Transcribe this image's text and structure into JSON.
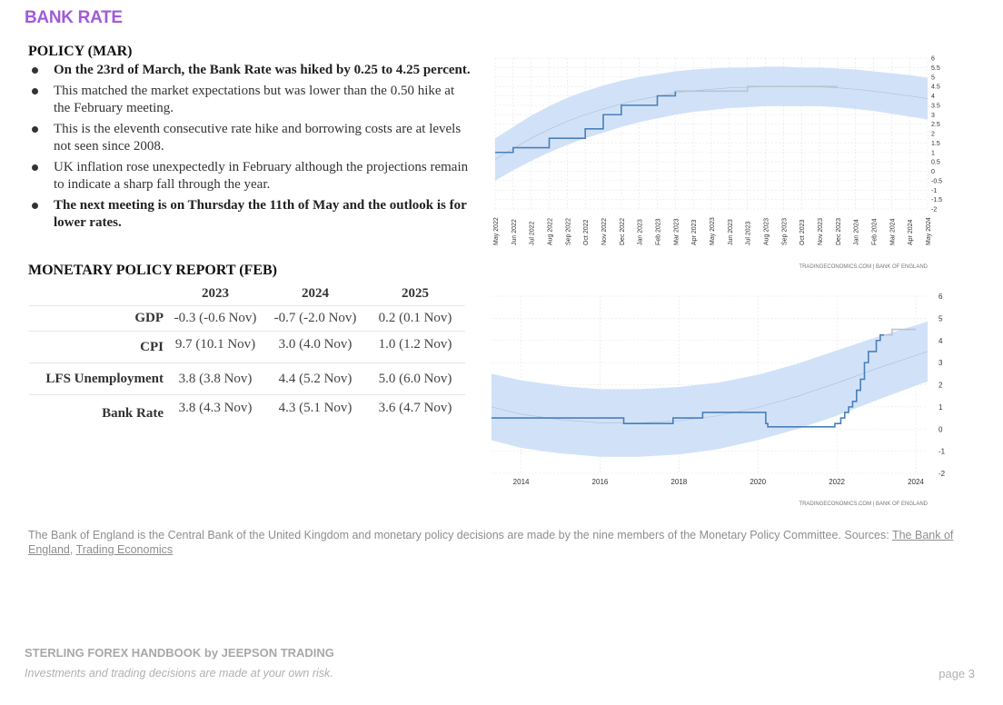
{
  "title": "BANK RATE",
  "policy": {
    "heading": "POLICY (MAR)",
    "bullets": [
      {
        "text": "On the 23rd of March, the Bank Rate was hiked by 0.25 to 4.25 percent.",
        "bold": true
      },
      {
        "text": "This matched the market expectations but was lower than the 0.50 hike at the February meeting.",
        "bold": false
      },
      {
        "text": "This is the eleventh consecutive rate hike and borrowing costs are at levels not seen since 2008.",
        "bold": false
      },
      {
        "text": "UK inflation rose unexpectedly in February although the projections remain to indicate a sharp fall through the year.",
        "bold": false
      },
      {
        "text": "The next meeting is on Thursday the 11th of May and the outlook is for lower rates.",
        "bold": true
      }
    ]
  },
  "mpr": {
    "heading": "MONETARY POLICY REPORT (FEB)",
    "columns": [
      "2023",
      "2024",
      "2025"
    ],
    "rows": [
      {
        "label": "GDP",
        "values": [
          "-0.3 (-0.6 Nov)",
          "-0.7 (-2.0 Nov)",
          "0.2 (0.1 Nov)"
        ]
      },
      {
        "label": "CPI",
        "values": [
          "9.7 (10.1 Nov)",
          "3.0 (4.0 Nov)",
          "1.0 (1.2 Nov)"
        ]
      },
      {
        "label": "LFS Unemployment",
        "values": [
          "3.8 (3.8 Nov)",
          "4.4 (5.2 Nov)",
          "5.0 (6.0 Nov)"
        ]
      },
      {
        "label": "Bank Rate",
        "values": [
          "3.8 (4.3 Nov)",
          "4.3 (5.1 Nov)",
          "3.6 (4.7 Nov)"
        ]
      }
    ]
  },
  "chart_data": [
    {
      "type": "line",
      "title": "",
      "source": "TRADINGECONOMICS.COM | BANK OF ENGLAND",
      "xlabel": "",
      "ylabel": "",
      "x": [
        "May 2022",
        "Jun 2022",
        "Jul 2022",
        "Aug 2022",
        "Sep 2022",
        "Oct 2022",
        "Nov 2022",
        "Dec 2022",
        "Jan 2023",
        "Feb 2023",
        "Mar 2023",
        "Apr 2023",
        "May 2023",
        "Jun 2023",
        "Jul 2023",
        "Aug 2023",
        "Sep 2023",
        "Oct 2023",
        "Nov 2023",
        "Dec 2023",
        "Jan 2024",
        "Feb 2024",
        "Mar 2024",
        "Apr 2024",
        "May 2024"
      ],
      "yticks": [
        "6",
        "5.5",
        "5",
        "4.5",
        "4",
        "3.5",
        "3",
        "2.5",
        "2",
        "1.5",
        "1",
        "0.5",
        "0",
        "-0.5",
        "-1",
        "-1.5",
        "-2"
      ],
      "ylim": [
        -2,
        6
      ],
      "y_axis_side": "right",
      "grid": true,
      "series": [
        {
          "values": [
            1.0,
            1.25,
            1.25,
            1.75,
            1.75,
            2.25,
            3.0,
            3.5,
            3.5,
            4.0,
            4.25,
            null,
            null,
            null,
            null,
            null,
            null,
            null,
            null,
            null,
            null,
            null,
            null,
            null,
            null
          ],
          "color": "#4a7fb8"
        },
        {
          "values": [
            null,
            null,
            null,
            null,
            null,
            null,
            null,
            null,
            null,
            null,
            4.25,
            4.25,
            4.25,
            4.25,
            4.5,
            4.5,
            4.5,
            4.5,
            4.5,
            4.5,
            null,
            null,
            null,
            null,
            null
          ],
          "color": "#b8c4d0"
        }
      ],
      "band_upper": [
        1.75,
        2.35,
        2.95,
        3.45,
        3.9,
        4.25,
        4.55,
        4.8,
        5.0,
        5.15,
        5.3,
        5.4,
        5.45,
        5.5,
        5.5,
        5.55,
        5.55,
        5.5,
        5.5,
        5.45,
        5.4,
        5.3,
        5.2,
        5.1,
        4.95
      ],
      "band_lower": [
        -0.5,
        0.05,
        0.55,
        1.0,
        1.4,
        1.75,
        2.05,
        2.35,
        2.6,
        2.8,
        3.0,
        3.15,
        3.25,
        3.35,
        3.4,
        3.45,
        3.45,
        3.45,
        3.45,
        3.4,
        3.3,
        3.2,
        3.05,
        2.9,
        2.75
      ],
      "band_color": "#c9ddf7"
    },
    {
      "type": "line",
      "title": "",
      "source": "TRADINGECONOMICS.COM | BANK OF ENGLAND",
      "xlabel": "",
      "ylabel": "",
      "xticks": [
        "2014",
        "2016",
        "2018",
        "2020",
        "2022",
        "2024"
      ],
      "xlim": [
        2013.25,
        2024.3
      ],
      "yticks": [
        "6",
        "5",
        "4",
        "3",
        "2",
        "1",
        "0",
        "-1",
        "-2"
      ],
      "ylim": [
        -2,
        6
      ],
      "y_axis_side": "right",
      "grid": true,
      "series": [
        {
          "x": [
            2013.25,
            2016.6,
            2016.6,
            2017.85,
            2017.85,
            2018.6,
            2018.6,
            2020.2,
            2020.2,
            2020.25,
            2020.25,
            2021.95,
            2021.95,
            2022.1,
            2022.1,
            2022.2,
            2022.2,
            2022.3,
            2022.3,
            2022.4,
            2022.4,
            2022.5,
            2022.5,
            2022.6,
            2022.6,
            2022.7,
            2022.7,
            2022.8,
            2022.8,
            2022.9,
            2022.9,
            2023.0,
            2023.0,
            2023.1,
            2023.1,
            2023.2,
            2023.2
          ],
          "y": [
            0.5,
            0.5,
            0.25,
            0.25,
            0.5,
            0.5,
            0.75,
            0.75,
            0.25,
            0.25,
            0.1,
            0.1,
            0.25,
            0.25,
            0.5,
            0.5,
            0.75,
            0.75,
            1.0,
            1.0,
            1.25,
            1.25,
            1.75,
            1.75,
            2.25,
            2.25,
            3.0,
            3.0,
            3.5,
            3.5,
            3.5,
            3.5,
            4.0,
            4.0,
            4.25,
            4.25,
            4.25
          ],
          "color": "#4a7fb8"
        },
        {
          "x": [
            2023.2,
            2023.4,
            2023.4,
            2023.6,
            2023.6,
            2024.0
          ],
          "y": [
            4.25,
            4.25,
            4.5,
            4.5,
            4.5,
            4.5
          ],
          "color": "#b8c4d0"
        }
      ],
      "band_upper_pts": [
        [
          2013.25,
          2.5
        ],
        [
          2014,
          2.2
        ],
        [
          2015,
          1.95
        ],
        [
          2016,
          1.8
        ],
        [
          2017,
          1.8
        ],
        [
          2018,
          1.9
        ],
        [
          2019,
          2.1
        ],
        [
          2020,
          2.45
        ],
        [
          2021,
          2.95
        ],
        [
          2022,
          3.55
        ],
        [
          2023,
          4.15
        ],
        [
          2024.3,
          4.85
        ]
      ],
      "band_lower_pts": [
        [
          2013.25,
          -0.5
        ],
        [
          2014,
          -0.85
        ],
        [
          2015,
          -1.1
        ],
        [
          2016,
          -1.25
        ],
        [
          2017,
          -1.25
        ],
        [
          2018,
          -1.15
        ],
        [
          2019,
          -0.9
        ],
        [
          2020,
          -0.5
        ],
        [
          2021,
          0.0
        ],
        [
          2022,
          0.6
        ],
        [
          2023,
          1.3
        ],
        [
          2024.3,
          2.15
        ]
      ],
      "band_color": "#c9ddf7"
    }
  ],
  "footnote": {
    "text": "The Bank of England is the Central Bank of the United Kingdom and monetary policy decisions are made by the nine members of the Monetary Policy Committee. Sources: ",
    "link1": "The Bank of England",
    "separator": ", ",
    "link2": "Trading Economics"
  },
  "footer": {
    "brand": "STERLING FOREX HANDBOOK by JEEPSON TRADING",
    "disclaimer": "Investments and trading decisions are made at your own risk.",
    "page": "page 3"
  }
}
